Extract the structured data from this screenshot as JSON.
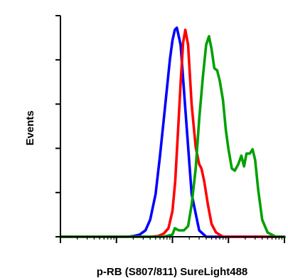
{
  "chart_data": {
    "type": "line",
    "title": "",
    "xlabel": "p-RB (S807/811) SureLight488",
    "ylabel": "Events",
    "x_scale": "log",
    "xlim": [
      1,
      10000
    ],
    "ylim": [
      0,
      100
    ],
    "grid": false,
    "legend": "none",
    "x_tick_labels": [],
    "y_tick_labels": [],
    "series": [
      {
        "color": "#0000ff",
        "x": [
          1,
          16,
          20,
          26,
          33,
          40,
          50,
          60,
          70,
          80,
          90,
          100,
          110,
          120,
          140,
          170,
          220,
          300,
          400,
          10000
        ],
        "y": [
          0,
          0,
          0.3,
          1,
          3,
          8,
          20,
          38,
          55,
          70,
          83,
          92,
          97,
          98,
          90,
          60,
          20,
          3,
          0,
          0
        ]
      },
      {
        "color": "#ff0000",
        "x": [
          1,
          40,
          55,
          70,
          85,
          100,
          112,
          125,
          140,
          155,
          170,
          190,
          220,
          260,
          300,
          330,
          370,
          430,
          500,
          600,
          800,
          10000
        ],
        "y": [
          0,
          0,
          0.3,
          1.5,
          4,
          12,
          26,
          48,
          72,
          91,
          97,
          90,
          62,
          42,
          34,
          32,
          26,
          15,
          6,
          2,
          0,
          0
        ]
      },
      {
        "color": "#00a000",
        "x": [
          1,
          70,
          100,
          110,
          130,
          160,
          190,
          220,
          260,
          300,
          350,
          400,
          450,
          500,
          560,
          630,
          700,
          800,
          900,
          1000,
          1150,
          1300,
          1500,
          1700,
          1900,
          2100,
          2400,
          2700,
          3000,
          3400,
          4000,
          5000,
          7000,
          10000
        ],
        "y": [
          0,
          0,
          1,
          4,
          3,
          3,
          5,
          15,
          32,
          55,
          75,
          90,
          94,
          88,
          79,
          78,
          73,
          64,
          50,
          41,
          32,
          31,
          34,
          38,
          33,
          39,
          39,
          41,
          36,
          22,
          8,
          2,
          0,
          0
        ]
      }
    ]
  }
}
